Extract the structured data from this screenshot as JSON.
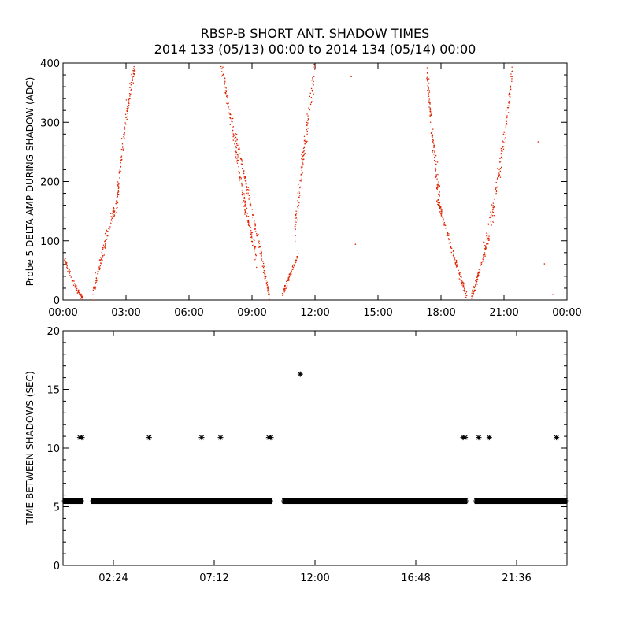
{
  "title": "RBSP-B SHORT ANT. SHADOW TIMES",
  "subtitle": "2014 133 (05/13) 00:00 to 2014 134 (05/14) 00:00",
  "colors": {
    "top_points": "#dd2200",
    "bottom_points": "#000000",
    "axes": "#000000"
  },
  "chart_data": [
    {
      "type": "scatter",
      "title": "RBSP-B SHORT ANT. SHADOW TIMES",
      "ylabel": "Probe 5 DELTA AMP DURING SHADOW (ADC)",
      "xlim_hours": [
        0,
        24
      ],
      "ylim": [
        0,
        400
      ],
      "xticks": [
        0,
        3,
        6,
        9,
        12,
        15,
        18,
        21,
        24
      ],
      "xtick_labels": [
        "00:00",
        "03:00",
        "06:00",
        "09:00",
        "12:00",
        "15:00",
        "18:00",
        "21:00",
        "00:00"
      ],
      "yticks": [
        0,
        100,
        200,
        300,
        400
      ],
      "ytick_labels": [
        "0",
        "100",
        "200",
        "300",
        "400"
      ],
      "segments": [
        {
          "x": [
            0.05,
            0.3,
            0.6,
            0.9
          ],
          "y": [
            70,
            45,
            22,
            4
          ],
          "count": 70,
          "spread": 8
        },
        {
          "x": [
            1.4,
            1.8,
            2.2,
            2.6
          ],
          "y": [
            10,
            70,
            130,
            175
          ],
          "count": 110,
          "spread": 22
        },
        {
          "x": [
            2.5,
            2.9,
            3.4
          ],
          "y": [
            150,
            290,
            400
          ],
          "count": 130,
          "spread": 30
        },
        {
          "x": [
            7.5,
            8.0,
            8.6,
            9.2
          ],
          "y": [
            400,
            300,
            170,
            70
          ],
          "count": 180,
          "spread": 25
        },
        {
          "x": [
            8.2,
            8.8,
            9.4,
            9.8
          ],
          "y": [
            280,
            180,
            80,
            8
          ],
          "count": 150,
          "spread": 14
        },
        {
          "x": [
            10.4,
            10.8,
            11.2
          ],
          "y": [
            8,
            45,
            80
          ],
          "count": 60,
          "spread": 10
        },
        {
          "x": [
            11.0,
            11.5,
            12.0
          ],
          "y": [
            110,
            270,
            400
          ],
          "count": 120,
          "spread": 40
        },
        {
          "x": [
            17.3,
            17.6,
            18.0
          ],
          "y": [
            390,
            260,
            150
          ],
          "count": 120,
          "spread": 35
        },
        {
          "x": [
            17.8,
            18.3,
            18.8,
            19.2
          ],
          "y": [
            170,
            110,
            50,
            8
          ],
          "count": 130,
          "spread": 12
        },
        {
          "x": [
            19.4,
            19.8,
            20.3
          ],
          "y": [
            2,
            50,
            110
          ],
          "count": 80,
          "spread": 12
        },
        {
          "x": [
            20.0,
            20.5,
            21.0,
            21.4
          ],
          "y": [
            80,
            160,
            280,
            390
          ],
          "count": 140,
          "spread": 35
        }
      ],
      "isolated_points": [
        {
          "x": 13.7,
          "y": 378
        },
        {
          "x": 13.9,
          "y": 95
        },
        {
          "x": 22.6,
          "y": 268
        },
        {
          "x": 22.9,
          "y": 62
        },
        {
          "x": 23.3,
          "y": 10
        }
      ]
    },
    {
      "type": "scatter",
      "ylabel": "TIME BETWEEN SHADOWS (SEC)",
      "xlim_hours": [
        0,
        24
      ],
      "ylim": [
        0,
        20
      ],
      "xticks": [
        2.4,
        7.2,
        12.0,
        16.8,
        21.6
      ],
      "xtick_labels": [
        "02:24",
        "07:12",
        "12:00",
        "16:48",
        "21:36"
      ],
      "yticks": [
        0,
        5,
        10,
        15,
        20
      ],
      "ytick_labels": [
        "0",
        "5",
        "10",
        "15",
        "20"
      ],
      "marker": "asterisk",
      "band_value": 5.5,
      "band_ranges": [
        [
          0.0,
          0.95
        ],
        [
          1.35,
          9.95
        ],
        [
          10.45,
          19.25
        ],
        [
          19.6,
          24.0
        ]
      ],
      "points": [
        {
          "x": 0.8,
          "y": 10.9
        },
        {
          "x": 0.9,
          "y": 10.9
        },
        {
          "x": 4.1,
          "y": 10.9
        },
        {
          "x": 6.6,
          "y": 10.9
        },
        {
          "x": 7.5,
          "y": 10.9
        },
        {
          "x": 9.8,
          "y": 10.9
        },
        {
          "x": 9.9,
          "y": 10.9
        },
        {
          "x": 11.3,
          "y": 16.3
        },
        {
          "x": 19.05,
          "y": 10.9
        },
        {
          "x": 19.15,
          "y": 10.9
        },
        {
          "x": 19.8,
          "y": 10.9
        },
        {
          "x": 20.3,
          "y": 10.9
        },
        {
          "x": 23.5,
          "y": 10.9
        }
      ]
    }
  ]
}
